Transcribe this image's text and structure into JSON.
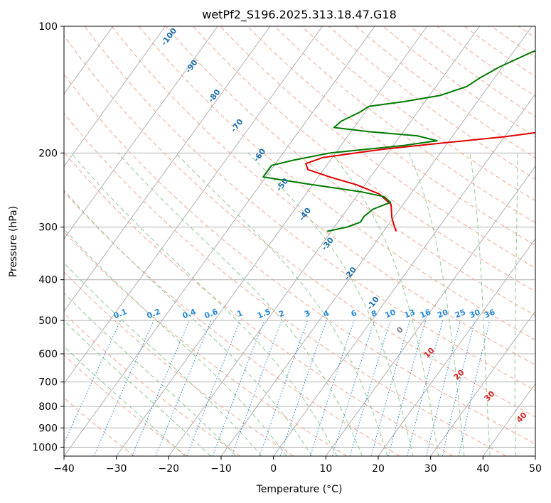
{
  "chart_data": {
    "type": "skew-t",
    "title": "wetPf2_S196.2025.313.18.47.G18",
    "xlabel": "Temperature (°C)",
    "ylabel": "Pressure (hPa)",
    "xlim": [
      -40,
      50
    ],
    "ylim": [
      1050,
      100
    ],
    "y_scale": "log",
    "grid": true,
    "x_ticks": [
      -40,
      -30,
      -20,
      -10,
      0,
      10,
      20,
      30,
      40,
      50
    ],
    "x_tick_labels": [
      "−40",
      "−30",
      "−20",
      "−10",
      "0",
      "10",
      "20",
      "30",
      "40",
      "50"
    ],
    "y_ticks": [
      100,
      200,
      300,
      400,
      500,
      600,
      700,
      800,
      900,
      1000
    ],
    "y_tick_labels": [
      "100",
      "200",
      "300",
      "400",
      "500",
      "600",
      "700",
      "800",
      "900",
      "1000"
    ],
    "dry_adiabat_labels": [
      "-100",
      "-90",
      "-80",
      "-70",
      "-60",
      "-50",
      "-40",
      "-30",
      "-20",
      "-10"
    ],
    "mixing_ratio_labels": [
      "0.1",
      "0.2",
      "0.4",
      "0.6",
      "1",
      "1.5",
      "2",
      "3",
      "4",
      "6",
      "8",
      "10",
      "13",
      "16",
      "20",
      "25",
      "30",
      "36"
    ],
    "moist_adiabat_labels": [
      "0",
      "10",
      "20",
      "30",
      "40"
    ],
    "colors": {
      "temperature": "#e00000",
      "dewpoint": "#007a00",
      "isotherm_grid": "#b0b0b0",
      "dry_adiabat": "#f7a58c",
      "moist_adiabat": "#8fc98f",
      "mixing_ratio": "#2a8ad8",
      "dry_label": "#1f6fa8",
      "moist_label": "#d62728",
      "moist_zero_label": "#808080"
    },
    "series": [
      {
        "name": "",
        "variable": "temperature",
        "points": [
          {
            "p": 307,
            "t": -7.6
          },
          {
            "p": 300,
            "t": -8.5
          },
          {
            "p": 285,
            "t": -10.3
          },
          {
            "p": 265,
            "t": -12.3
          },
          {
            "p": 250,
            "t": -16.1
          },
          {
            "p": 238,
            "t": -21.6
          },
          {
            "p": 228,
            "t": -27.8
          },
          {
            "p": 219,
            "t": -33.0
          },
          {
            "p": 212,
            "t": -34.2
          },
          {
            "p": 205,
            "t": -31.8
          },
          {
            "p": 196,
            "t": -21.5
          },
          {
            "p": 190,
            "t": -12.0
          },
          {
            "p": 183,
            "t": 0.0
          },
          {
            "p": 177,
            "t": 8.0
          },
          {
            "p": 172,
            "t": 13.0
          },
          {
            "p": 165,
            "t": 15.0
          },
          {
            "p": 158,
            "t": 15.0
          },
          {
            "p": 150,
            "t": 15.2
          },
          {
            "p": 142,
            "t": 17.0
          },
          {
            "p": 133,
            "t": 20.0
          },
          {
            "p": 127,
            "t": 22.6
          },
          {
            "p": 120,
            "t": 22.6
          },
          {
            "p": 113,
            "t": 21.9
          },
          {
            "p": 107,
            "t": 23.0
          },
          {
            "p": 102,
            "t": 25.3
          },
          {
            "p": 100,
            "t": 25.8
          }
        ]
      },
      {
        "name": "",
        "variable": "dewpoint",
        "points": [
          {
            "p": 307,
            "t": -20.8
          },
          {
            "p": 300,
            "t": -17.6
          },
          {
            "p": 292,
            "t": -15.7
          },
          {
            "p": 283,
            "t": -15.8
          },
          {
            "p": 272,
            "t": -15.1
          },
          {
            "p": 262,
            "t": -12.7
          },
          {
            "p": 254,
            "t": -14.7
          },
          {
            "p": 247,
            "t": -20.0
          },
          {
            "p": 237,
            "t": -31.0
          },
          {
            "p": 228,
            "t": -40.5
          },
          {
            "p": 221,
            "t": -40.5
          },
          {
            "p": 214,
            "t": -40.5
          },
          {
            "p": 208,
            "t": -37.0
          },
          {
            "p": 200,
            "t": -31.0
          },
          {
            "p": 192,
            "t": -18.0
          },
          {
            "p": 187,
            "t": -12.3
          },
          {
            "p": 182,
            "t": -16.8
          },
          {
            "p": 178,
            "t": -26.5
          },
          {
            "p": 174,
            "t": -33.8
          },
          {
            "p": 168,
            "t": -33.3
          },
          {
            "p": 160,
            "t": -31.0
          },
          {
            "p": 155,
            "t": -30.1
          },
          {
            "p": 151,
            "t": -24.0
          },
          {
            "p": 146,
            "t": -18.0
          },
          {
            "p": 139,
            "t": -14.1
          },
          {
            "p": 133,
            "t": -12.9
          },
          {
            "p": 125,
            "t": -10.6
          },
          {
            "p": 115,
            "t": -6.4
          },
          {
            "p": 108,
            "t": -1.0
          },
          {
            "p": 100,
            "t": 3.3
          }
        ]
      }
    ]
  }
}
